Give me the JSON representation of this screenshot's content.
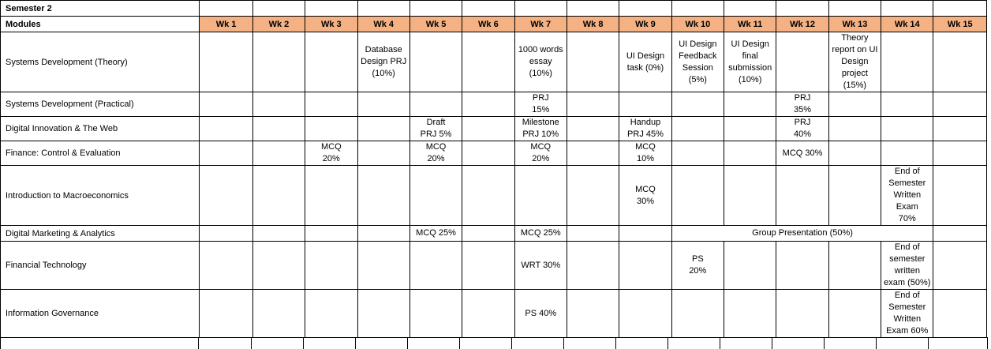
{
  "sheet": {
    "semester_label": "Semester 2",
    "modules_label": "Modules",
    "weeks": [
      "Wk 1",
      "Wk 2",
      "Wk 3",
      "Wk 4",
      "Wk 5",
      "Wk 6",
      "Wk 7",
      "Wk 8",
      "Wk 9",
      "Wk 10",
      "Wk 11",
      "Wk 12",
      "Wk 13",
      "Wk 14",
      "Wk 15"
    ],
    "header_color": "#F4B183",
    "rows": [
      {
        "module": "Systems Development (Theory)",
        "cells": [
          "",
          "",
          "",
          "Database\nDesign PRJ\n(10%)",
          "",
          "",
          "1000 words\nessay\n(10%)",
          "",
          "UI Design\ntask (0%)",
          "UI Design\nFeedback\nSession\n(5%)",
          "UI Design\nfinal\nsubmission\n(10%)",
          "",
          "Theory\nreport on UI\nDesign\nproject\n(15%)",
          "",
          ""
        ]
      },
      {
        "module": "Systems Development (Practical)",
        "cells": [
          "",
          "",
          "",
          "",
          "",
          "",
          "PRJ\n15%",
          "",
          "",
          "",
          "",
          "PRJ\n35%",
          "",
          "",
          ""
        ]
      },
      {
        "module": "Digital Innovation & The Web",
        "cells": [
          "",
          "",
          "",
          "",
          "Draft\nPRJ 5%",
          "",
          "Milestone\nPRJ 10%",
          "",
          "Handup\nPRJ 45%",
          "",
          "",
          "PRJ\n40%",
          "",
          "",
          ""
        ]
      },
      {
        "module": "Finance: Control & Evaluation",
        "cells": [
          "",
          "",
          "MCQ\n20%",
          "",
          "MCQ\n20%",
          "",
          "MCQ\n20%",
          "",
          "MCQ\n10%",
          "",
          "",
          "MCQ 30%",
          "",
          "",
          ""
        ]
      },
      {
        "module": "Introduction to Macroeconomics",
        "cells": [
          "",
          "",
          "",
          "",
          "",
          "",
          "",
          "",
          "MCQ\n30%",
          "",
          "",
          "",
          "",
          "End of\nSemester\nWritten\nExam\n70%",
          ""
        ]
      },
      {
        "module": "Digital Marketing & Analytics",
        "cells": [
          "",
          "",
          "",
          "",
          "MCQ 25%",
          "",
          "MCQ 25%",
          "",
          "",
          "",
          "",
          "",
          "",
          "",
          ""
        ],
        "group_presentation": "Group Presentation (50%)"
      },
      {
        "module": "Financial Technology",
        "cells": [
          "",
          "",
          "",
          "",
          "",
          "",
          "WRT 30%",
          "",
          "",
          "PS\n20%",
          "",
          "",
          "",
          "End of\nsemester\nwritten\nexam (50%)",
          ""
        ]
      },
      {
        "module": "Information Governance",
        "cells": [
          "",
          "",
          "",
          "",
          "",
          "",
          "PS 40%",
          "",
          "",
          "",
          "",
          "",
          "",
          "End of\nSemester\nWritten\nExam 60%",
          ""
        ]
      }
    ]
  }
}
